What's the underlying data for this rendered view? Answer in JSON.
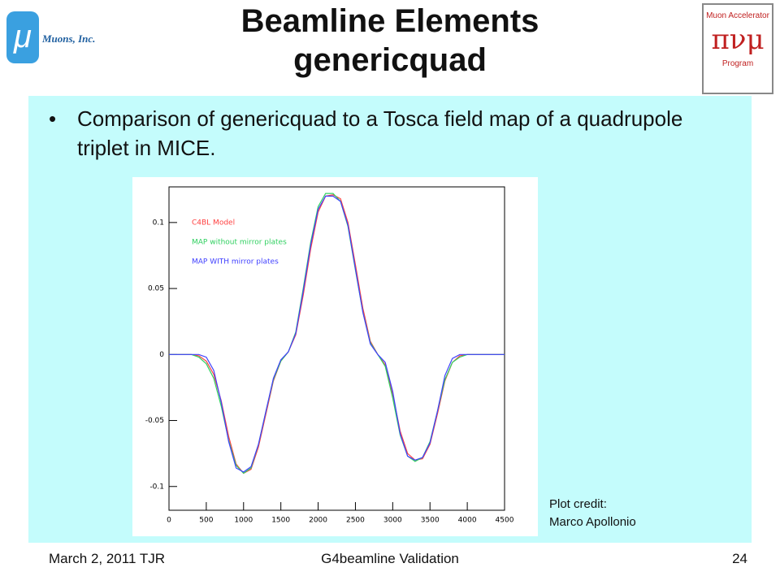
{
  "header": {
    "title_lines": [
      "Beamline Elements",
      "genericquad"
    ]
  },
  "logos": {
    "left": {
      "symbol": "μ",
      "text": "Muons, Inc."
    },
    "right": {
      "top": "Muon Accelerator",
      "symbols": "πνμ",
      "bottom": "Program"
    }
  },
  "body": {
    "bullet": "Comparison of genericquad to a Tosca field map of a quadrupole triplet in MICE."
  },
  "credit": [
    "Plot credit:",
    "Marco Apollonio"
  ],
  "footer": {
    "left": "March 2, 2011  TJR",
    "center": "G4beamline Validation",
    "right": "24"
  },
  "chart_data": {
    "type": "line",
    "x": [
      0,
      100,
      200,
      300,
      400,
      500,
      600,
      700,
      800,
      900,
      1000,
      1100,
      1200,
      1300,
      1400,
      1500,
      1600,
      1700,
      1800,
      1900,
      2000,
      2100,
      2200,
      2300,
      2400,
      2500,
      2600,
      2700,
      2800,
      2900,
      3000,
      3100,
      3200,
      3300,
      3400,
      3500,
      3600,
      3700,
      3800,
      3900,
      4000,
      4100,
      4200,
      4300,
      4400,
      4500
    ],
    "series": [
      {
        "name": "C4BL Model",
        "color": "#ff4040",
        "values": [
          0,
          0,
          0,
          0,
          -0.001,
          -0.005,
          -0.015,
          -0.035,
          -0.062,
          -0.083,
          -0.09,
          -0.087,
          -0.07,
          -0.045,
          -0.02,
          -0.005,
          0.002,
          0.015,
          0.045,
          0.08,
          0.108,
          0.12,
          0.121,
          0.118,
          0.1,
          0.068,
          0.035,
          0.01,
          0,
          -0.008,
          -0.03,
          -0.058,
          -0.075,
          -0.08,
          -0.079,
          -0.068,
          -0.045,
          -0.02,
          -0.006,
          -0.001,
          0,
          0,
          0,
          0,
          0,
          0
        ]
      },
      {
        "name": "MAP without mirror plates",
        "color": "#30d060",
        "values": [
          0,
          0,
          0,
          0,
          -0.002,
          -0.007,
          -0.018,
          -0.039,
          -0.065,
          -0.084,
          -0.09,
          -0.086,
          -0.068,
          -0.043,
          -0.019,
          -0.005,
          0.002,
          0.017,
          0.05,
          0.085,
          0.112,
          0.122,
          0.122,
          0.116,
          0.097,
          0.064,
          0.032,
          0.009,
          0,
          -0.009,
          -0.033,
          -0.061,
          -0.077,
          -0.081,
          -0.078,
          -0.066,
          -0.043,
          -0.019,
          -0.006,
          -0.002,
          0,
          0,
          0,
          0,
          0,
          0
        ]
      },
      {
        "name": "MAP WITH mirror plates",
        "color": "#4040ff",
        "values": [
          0,
          0,
          0,
          0,
          0,
          -0.002,
          -0.012,
          -0.036,
          -0.066,
          -0.086,
          -0.089,
          -0.085,
          -0.068,
          -0.043,
          -0.018,
          -0.004,
          0.002,
          0.016,
          0.048,
          0.083,
          0.11,
          0.12,
          0.12,
          0.116,
          0.098,
          0.065,
          0.032,
          0.008,
          0,
          -0.006,
          -0.028,
          -0.06,
          -0.077,
          -0.08,
          -0.078,
          -0.067,
          -0.043,
          -0.016,
          -0.003,
          0,
          0,
          0,
          0,
          0,
          0,
          0
        ]
      }
    ],
    "xlim": [
      0,
      4500
    ],
    "xticks": [
      0,
      500,
      1000,
      1500,
      2000,
      2500,
      3000,
      3500,
      4000,
      4500
    ],
    "ylim": [
      -0.118,
      0.127
    ],
    "yticks": [
      -0.1,
      -0.05,
      0,
      0.05,
      0.1
    ]
  }
}
